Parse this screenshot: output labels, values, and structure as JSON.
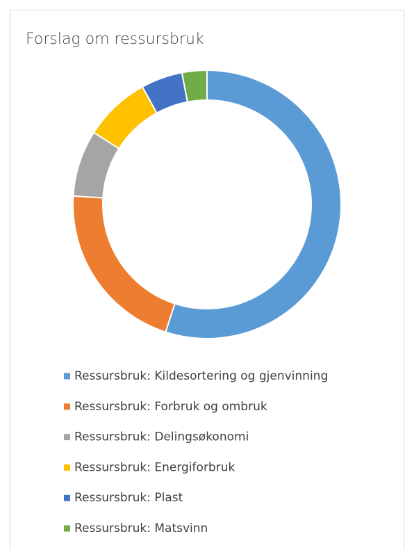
{
  "chart_data": {
    "type": "donut",
    "title": "Forslag om ressursbruk",
    "categories": [
      "Ressursbruk: Kildesortering og gjenvinning",
      "Ressursbruk: Forbruk og ombruk",
      "Ressursbruk: Delingsøkonomi",
      "Ressursbruk: Energiforbruk",
      "Ressursbruk: Plast",
      "Ressursbruk: Matsvinn"
    ],
    "values": [
      55,
      21,
      8,
      8,
      5,
      3
    ],
    "colors": [
      "#5b9bd5",
      "#ed7d31",
      "#a5a5a5",
      "#ffc000",
      "#4472c4",
      "#70ad47"
    ]
  }
}
